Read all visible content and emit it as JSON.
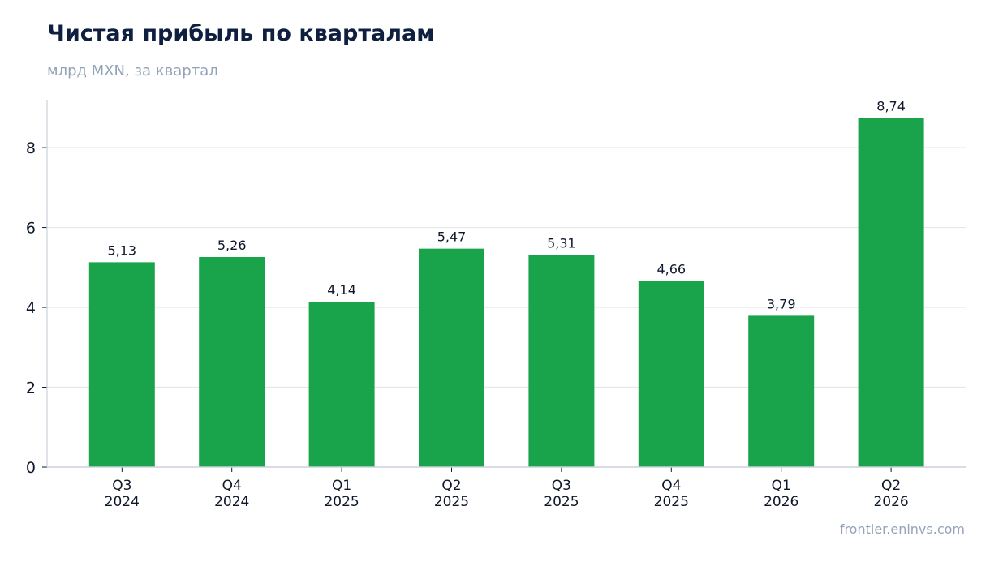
{
  "header": {
    "title": "Чистая прибыль по кварталам",
    "subtitle": "млрд MXN, за квартал"
  },
  "footer": {
    "source": "frontier.eninvs.com"
  },
  "colors": {
    "bar": "#19a34a",
    "grid": "#e5e7eb",
    "axis": "#cbd2da",
    "text": "#0f172a",
    "title": "#0f1f40",
    "muted": "#93a3b8"
  },
  "chart_data": {
    "type": "bar",
    "title": "Чистая прибыль по кварталам",
    "subtitle": "млрд MXN, за квартал",
    "categories": [
      "Q3 2024",
      "Q4 2024",
      "Q1 2025",
      "Q2 2025",
      "Q3 2025",
      "Q4 2025",
      "Q1 2026",
      "Q2 2026"
    ],
    "category_lines": [
      [
        "Q3",
        "2024"
      ],
      [
        "Q4",
        "2024"
      ],
      [
        "Q1",
        "2025"
      ],
      [
        "Q2",
        "2025"
      ],
      [
        "Q3",
        "2025"
      ],
      [
        "Q4",
        "2025"
      ],
      [
        "Q1",
        "2026"
      ],
      [
        "Q2",
        "2026"
      ]
    ],
    "values": [
      5.13,
      5.26,
      4.14,
      5.47,
      5.31,
      4.66,
      3.79,
      8.74
    ],
    "data_labels": [
      "5,13",
      "5,26",
      "4,14",
      "5,47",
      "5,31",
      "4,66",
      "3,79",
      "8,74"
    ],
    "yticks": [
      0,
      2,
      4,
      6,
      8
    ],
    "ylim": [
      0,
      9.2
    ],
    "grid": true,
    "xlabel": "",
    "ylabel": ""
  }
}
